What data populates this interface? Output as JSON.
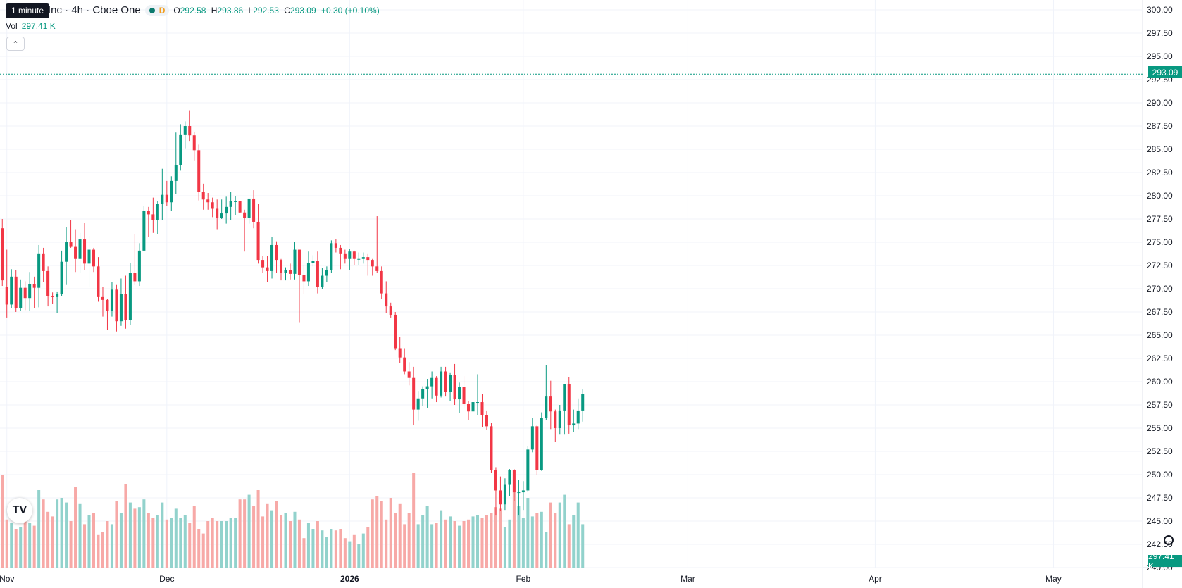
{
  "header": {
    "symbol_tail": "Inc · 4h · Cboe One",
    "interval_letter": "D",
    "open_label": "O",
    "open": "292.58",
    "high_label": "H",
    "high": "293.86",
    "low_label": "L",
    "low": "292.53",
    "close_label": "C",
    "close": "293.09",
    "change": "+0.30 (+0.10%)",
    "tooltip": "1 minute"
  },
  "volume_legend": {
    "label": "Vol",
    "value": "297.41 K"
  },
  "current_price_label": "293.09",
  "current_volume_label": "297.41 K",
  "colors": {
    "up": "#089981",
    "down": "#f23645",
    "up_vol": "#92d2cc",
    "down_vol": "#f7a9a7",
    "grid": "#f0f3fa"
  },
  "icons": [
    "chevron-up-icon",
    "tradingview-logo-icon",
    "gear-icon"
  ],
  "chart_data": {
    "type": "candlestick",
    "interval": "4h",
    "y_axis": {
      "ticks": [
        "300.00",
        "297.50",
        "295.00",
        "292.50",
        "290.00",
        "287.50",
        "285.00",
        "282.50",
        "280.00",
        "277.50",
        "275.00",
        "272.50",
        "270.00",
        "267.50",
        "265.00",
        "262.50",
        "260.00",
        "257.50",
        "255.00",
        "252.50",
        "250.00",
        "247.50",
        "245.00",
        "242.50",
        "240.00"
      ],
      "ylim": [
        240,
        300
      ]
    },
    "x_axis": {
      "labels": [
        {
          "text": "Nov",
          "bar": 1
        },
        {
          "text": "Dec",
          "bar": 36
        },
        {
          "text": "2026",
          "bar": 76,
          "bold": true
        },
        {
          "text": "Feb",
          "bar": 114
        },
        {
          "text": "Mar",
          "bar": 150
        },
        {
          "text": "Apr",
          "bar": 191
        },
        {
          "text": "May",
          "bar": 230
        }
      ]
    },
    "bars_total": 250,
    "bars": [
      {
        "o": 276.5,
        "h": 277.5,
        "l": 270.3,
        "c": 270.9,
        "v": 60
      },
      {
        "o": 270.2,
        "h": 274.2,
        "l": 266.9,
        "c": 268.3,
        "v": 31
      },
      {
        "o": 268.3,
        "h": 272.1,
        "l": 267.9,
        "c": 271.3,
        "v": 29
      },
      {
        "o": 271.3,
        "h": 272.0,
        "l": 267.5,
        "c": 267.9,
        "v": 25
      },
      {
        "o": 267.9,
        "h": 271.0,
        "l": 267.6,
        "c": 270.1,
        "v": 26
      },
      {
        "o": 270.1,
        "h": 270.8,
        "l": 267.7,
        "c": 269.0,
        "v": 33
      },
      {
        "o": 269.0,
        "h": 271.8,
        "l": 267.6,
        "c": 270.5,
        "v": 29
      },
      {
        "o": 270.5,
        "h": 271.3,
        "l": 267.9,
        "c": 270.1,
        "v": 27
      },
      {
        "o": 270.1,
        "h": 274.7,
        "l": 268.0,
        "c": 273.8,
        "v": 50
      },
      {
        "o": 273.8,
        "h": 274.4,
        "l": 270.7,
        "c": 271.9,
        "v": 44
      },
      {
        "o": 271.9,
        "h": 272.4,
        "l": 268.1,
        "c": 269.2,
        "v": 36
      },
      {
        "o": 269.2,
        "h": 269.6,
        "l": 268.4,
        "c": 269.1,
        "v": 33
      },
      {
        "o": 269.1,
        "h": 269.7,
        "l": 267.4,
        "c": 269.4,
        "v": 44
      },
      {
        "o": 269.4,
        "h": 274.1,
        "l": 269.2,
        "c": 272.9,
        "v": 45
      },
      {
        "o": 272.9,
        "h": 276.6,
        "l": 270.4,
        "c": 275.0,
        "v": 42
      },
      {
        "o": 275.0,
        "h": 277.4,
        "l": 274.4,
        "c": 274.5,
        "v": 30
      },
      {
        "o": 274.5,
        "h": 276.4,
        "l": 271.8,
        "c": 273.2,
        "v": 52
      },
      {
        "o": 273.2,
        "h": 276.0,
        "l": 271.7,
        "c": 275.3,
        "v": 41
      },
      {
        "o": 275.3,
        "h": 277.1,
        "l": 272.0,
        "c": 272.7,
        "v": 28
      },
      {
        "o": 272.7,
        "h": 275.7,
        "l": 270.2,
        "c": 274.2,
        "v": 34
      },
      {
        "o": 274.2,
        "h": 274.4,
        "l": 271.8,
        "c": 272.4,
        "v": 35
      },
      {
        "o": 272.4,
        "h": 273.4,
        "l": 268.6,
        "c": 269.1,
        "v": 21
      },
      {
        "o": 269.1,
        "h": 270.2,
        "l": 267.0,
        "c": 268.8,
        "v": 23
      },
      {
        "o": 268.8,
        "h": 268.9,
        "l": 265.6,
        "c": 267.6,
        "v": 30
      },
      {
        "o": 267.6,
        "h": 270.7,
        "l": 267.0,
        "c": 269.9,
        "v": 28
      },
      {
        "o": 269.9,
        "h": 270.4,
        "l": 265.4,
        "c": 266.5,
        "v": 43
      },
      {
        "o": 266.5,
        "h": 271.1,
        "l": 266.0,
        "c": 269.4,
        "v": 35
      },
      {
        "o": 269.4,
        "h": 271.4,
        "l": 265.7,
        "c": 266.6,
        "v": 54
      },
      {
        "o": 266.6,
        "h": 272.8,
        "l": 266.1,
        "c": 271.7,
        "v": 42
      },
      {
        "o": 271.7,
        "h": 275.9,
        "l": 270.4,
        "c": 270.8,
        "v": 38
      },
      {
        "o": 270.8,
        "h": 274.9,
        "l": 270.3,
        "c": 274.1,
        "v": 39
      },
      {
        "o": 274.1,
        "h": 278.9,
        "l": 274.1,
        "c": 278.4,
        "v": 44
      },
      {
        "o": 278.4,
        "h": 278.8,
        "l": 275.6,
        "c": 278.0,
        "v": 35
      },
      {
        "o": 278.0,
        "h": 279.8,
        "l": 276.0,
        "c": 277.4,
        "v": 32
      },
      {
        "o": 277.4,
        "h": 279.4,
        "l": 275.9,
        "c": 279.1,
        "v": 34
      },
      {
        "o": 279.1,
        "h": 282.9,
        "l": 277.4,
        "c": 280.1,
        "v": 42
      },
      {
        "o": 280.1,
        "h": 281.6,
        "l": 278.9,
        "c": 279.3,
        "v": 31
      },
      {
        "o": 279.3,
        "h": 282.1,
        "l": 278.4,
        "c": 281.6,
        "v": 32
      },
      {
        "o": 281.6,
        "h": 286.8,
        "l": 280.2,
        "c": 283.3,
        "v": 38
      },
      {
        "o": 283.3,
        "h": 287.7,
        "l": 282.7,
        "c": 286.6,
        "v": 32
      },
      {
        "o": 286.6,
        "h": 288.0,
        "l": 285.1,
        "c": 287.5,
        "v": 34
      },
      {
        "o": 287.5,
        "h": 289.2,
        "l": 285.9,
        "c": 286.5,
        "v": 29
      },
      {
        "o": 286.5,
        "h": 286.9,
        "l": 283.8,
        "c": 284.9,
        "v": 40
      },
      {
        "o": 284.9,
        "h": 285.5,
        "l": 279.5,
        "c": 280.4,
        "v": 25
      },
      {
        "o": 280.4,
        "h": 281.3,
        "l": 278.5,
        "c": 279.6,
        "v": 22
      },
      {
        "o": 279.6,
        "h": 280.3,
        "l": 278.5,
        "c": 279.3,
        "v": 30
      },
      {
        "o": 279.3,
        "h": 279.8,
        "l": 277.7,
        "c": 278.6,
        "v": 32
      },
      {
        "o": 278.6,
        "h": 279.6,
        "l": 276.4,
        "c": 277.6,
        "v": 30
      },
      {
        "o": 277.6,
        "h": 279.6,
        "l": 277.5,
        "c": 278.1,
        "v": 30
      },
      {
        "o": 278.1,
        "h": 279.9,
        "l": 277.0,
        "c": 278.8,
        "v": 30
      },
      {
        "o": 278.8,
        "h": 280.4,
        "l": 277.4,
        "c": 279.4,
        "v": 32
      },
      {
        "o": 279.4,
        "h": 280.0,
        "l": 277.9,
        "c": 279.4,
        "v": 32
      },
      {
        "o": 279.4,
        "h": 279.4,
        "l": 278.2,
        "c": 278.2,
        "v": 44
      },
      {
        "o": 278.2,
        "h": 278.5,
        "l": 274.0,
        "c": 277.6,
        "v": 44
      },
      {
        "o": 277.6,
        "h": 279.7,
        "l": 277.0,
        "c": 279.7,
        "v": 47
      },
      {
        "o": 279.7,
        "h": 280.6,
        "l": 276.5,
        "c": 277.2,
        "v": 40
      },
      {
        "o": 277.2,
        "h": 279.1,
        "l": 272.7,
        "c": 273.1,
        "v": 50
      },
      {
        "o": 273.1,
        "h": 273.5,
        "l": 271.7,
        "c": 272.3,
        "v": 33
      },
      {
        "o": 272.3,
        "h": 273.5,
        "l": 270.7,
        "c": 271.9,
        "v": 41
      },
      {
        "o": 271.9,
        "h": 275.6,
        "l": 271.1,
        "c": 274.7,
        "v": 37
      },
      {
        "o": 274.7,
        "h": 275.1,
        "l": 271.7,
        "c": 273.1,
        "v": 43
      },
      {
        "o": 273.1,
        "h": 273.2,
        "l": 270.9,
        "c": 271.7,
        "v": 34
      },
      {
        "o": 271.7,
        "h": 272.3,
        "l": 270.9,
        "c": 272.0,
        "v": 35
      },
      {
        "o": 272.0,
        "h": 272.7,
        "l": 271.0,
        "c": 271.6,
        "v": 30
      },
      {
        "o": 271.6,
        "h": 275.0,
        "l": 271.0,
        "c": 274.2,
        "v": 36
      },
      {
        "o": 274.2,
        "h": 274.2,
        "l": 266.4,
        "c": 271.5,
        "v": 31
      },
      {
        "o": 271.5,
        "h": 272.5,
        "l": 269.4,
        "c": 270.8,
        "v": 19
      },
      {
        "o": 270.8,
        "h": 274.0,
        "l": 270.3,
        "c": 272.8,
        "v": 29
      },
      {
        "o": 272.8,
        "h": 273.6,
        "l": 272.4,
        "c": 273.0,
        "v": 25
      },
      {
        "o": 273.0,
        "h": 274.0,
        "l": 269.5,
        "c": 270.2,
        "v": 30
      },
      {
        "o": 270.2,
        "h": 272.2,
        "l": 270.0,
        "c": 271.4,
        "v": 24
      },
      {
        "o": 271.4,
        "h": 272.4,
        "l": 270.7,
        "c": 272.0,
        "v": 20
      },
      {
        "o": 272.0,
        "h": 275.2,
        "l": 271.7,
        "c": 274.9,
        "v": 25
      },
      {
        "o": 274.9,
        "h": 275.3,
        "l": 273.9,
        "c": 274.4,
        "v": 24
      },
      {
        "o": 274.4,
        "h": 274.7,
        "l": 272.1,
        "c": 273.8,
        "v": 25
      },
      {
        "o": 273.8,
        "h": 274.2,
        "l": 272.7,
        "c": 273.2,
        "v": 19
      },
      {
        "o": 273.2,
        "h": 274.3,
        "l": 272.0,
        "c": 274.0,
        "v": 17
      },
      {
        "o": 274.0,
        "h": 274.1,
        "l": 272.5,
        "c": 273.2,
        "v": 21
      },
      {
        "o": 273.2,
        "h": 273.9,
        "l": 272.5,
        "c": 273.2,
        "v": 15
      },
      {
        "o": 273.2,
        "h": 273.9,
        "l": 272.7,
        "c": 273.4,
        "v": 22
      },
      {
        "o": 273.4,
        "h": 273.8,
        "l": 271.4,
        "c": 273.1,
        "v": 26
      },
      {
        "o": 273.1,
        "h": 273.2,
        "l": 271.4,
        "c": 272.4,
        "v": 44
      },
      {
        "o": 272.4,
        "h": 277.8,
        "l": 271.7,
        "c": 271.9,
        "v": 46
      },
      {
        "o": 271.9,
        "h": 272.4,
        "l": 268.9,
        "c": 269.5,
        "v": 43
      },
      {
        "o": 269.5,
        "h": 270.8,
        "l": 267.4,
        "c": 268.1,
        "v": 31
      },
      {
        "o": 268.1,
        "h": 268.5,
        "l": 266.9,
        "c": 267.2,
        "v": 45
      },
      {
        "o": 267.2,
        "h": 267.5,
        "l": 263.4,
        "c": 263.6,
        "v": 35
      },
      {
        "o": 263.6,
        "h": 264.8,
        "l": 262.0,
        "c": 262.6,
        "v": 41
      },
      {
        "o": 262.6,
        "h": 263.6,
        "l": 260.8,
        "c": 261.1,
        "v": 28
      },
      {
        "o": 261.1,
        "h": 262.1,
        "l": 259.6,
        "c": 260.4,
        "v": 35
      },
      {
        "o": 260.4,
        "h": 261.6,
        "l": 255.3,
        "c": 257.0,
        "v": 61
      },
      {
        "o": 257.0,
        "h": 259.0,
        "l": 255.8,
        "c": 258.2,
        "v": 28
      },
      {
        "o": 258.2,
        "h": 259.5,
        "l": 257.4,
        "c": 259.2,
        "v": 34
      },
      {
        "o": 259.2,
        "h": 260.3,
        "l": 257.2,
        "c": 259.5,
        "v": 40
      },
      {
        "o": 259.5,
        "h": 261.1,
        "l": 258.2,
        "c": 260.4,
        "v": 28
      },
      {
        "o": 260.4,
        "h": 260.6,
        "l": 257.8,
        "c": 258.5,
        "v": 29
      },
      {
        "o": 258.5,
        "h": 261.6,
        "l": 258.3,
        "c": 261.1,
        "v": 37
      },
      {
        "o": 261.1,
        "h": 261.6,
        "l": 258.4,
        "c": 258.9,
        "v": 31
      },
      {
        "o": 258.9,
        "h": 261.0,
        "l": 257.9,
        "c": 260.7,
        "v": 33
      },
      {
        "o": 260.7,
        "h": 261.9,
        "l": 257.5,
        "c": 258.1,
        "v": 30
      },
      {
        "o": 258.1,
        "h": 259.9,
        "l": 256.6,
        "c": 259.4,
        "v": 27
      },
      {
        "o": 259.4,
        "h": 260.6,
        "l": 257.1,
        "c": 257.6,
        "v": 30
      },
      {
        "o": 257.6,
        "h": 257.9,
        "l": 255.9,
        "c": 256.8,
        "v": 31
      },
      {
        "o": 256.8,
        "h": 258.4,
        "l": 256.1,
        "c": 257.8,
        "v": 33
      },
      {
        "o": 257.8,
        "h": 260.8,
        "l": 256.4,
        "c": 257.8,
        "v": 34
      },
      {
        "o": 257.8,
        "h": 258.7,
        "l": 255.1,
        "c": 256.4,
        "v": 32
      },
      {
        "o": 256.4,
        "h": 256.9,
        "l": 254.8,
        "c": 255.2,
        "v": 34
      },
      {
        "o": 255.2,
        "h": 255.6,
        "l": 250.2,
        "c": 250.5,
        "v": 35
      },
      {
        "o": 250.5,
        "h": 250.8,
        "l": 245.6,
        "c": 248.3,
        "v": 39
      },
      {
        "o": 248.3,
        "h": 249.8,
        "l": 246.1,
        "c": 246.8,
        "v": 38
      },
      {
        "o": 246.8,
        "h": 249.6,
        "l": 246.2,
        "c": 248.9,
        "v": 26
      },
      {
        "o": 248.9,
        "h": 250.6,
        "l": 247.7,
        "c": 250.5,
        "v": 31
      },
      {
        "o": 250.5,
        "h": 250.6,
        "l": 247.2,
        "c": 248.1,
        "v": 49
      },
      {
        "o": 248.1,
        "h": 249.4,
        "l": 245.6,
        "c": 248.1,
        "v": 40
      },
      {
        "o": 248.1,
        "h": 249.3,
        "l": 246.2,
        "c": 248.3,
        "v": 32
      },
      {
        "o": 248.3,
        "h": 253.1,
        "l": 248.2,
        "c": 252.7,
        "v": 45
      },
      {
        "o": 252.7,
        "h": 256.1,
        "l": 252.4,
        "c": 255.2,
        "v": 33
      },
      {
        "o": 255.2,
        "h": 255.3,
        "l": 250.0,
        "c": 250.5,
        "v": 35
      },
      {
        "o": 250.5,
        "h": 256.7,
        "l": 250.4,
        "c": 256.1,
        "v": 36
      },
      {
        "o": 256.1,
        "h": 261.8,
        "l": 255.9,
        "c": 258.4,
        "v": 23
      },
      {
        "o": 258.4,
        "h": 260.1,
        "l": 254.9,
        "c": 256.8,
        "v": 42
      },
      {
        "o": 256.8,
        "h": 257.0,
        "l": 253.5,
        "c": 255.0,
        "v": 35
      },
      {
        "o": 255.0,
        "h": 257.5,
        "l": 254.3,
        "c": 256.9,
        "v": 42
      },
      {
        "o": 256.9,
        "h": 259.7,
        "l": 254.3,
        "c": 259.7,
        "v": 47
      },
      {
        "o": 259.7,
        "h": 260.5,
        "l": 254.4,
        "c": 255.3,
        "v": 28
      },
      {
        "o": 255.3,
        "h": 257.0,
        "l": 254.6,
        "c": 255.5,
        "v": 34
      },
      {
        "o": 255.5,
        "h": 258.2,
        "l": 254.9,
        "c": 256.9,
        "v": 42
      },
      {
        "o": 256.9,
        "h": 259.2,
        "l": 255.7,
        "c": 258.7,
        "v": 28
      }
    ]
  }
}
